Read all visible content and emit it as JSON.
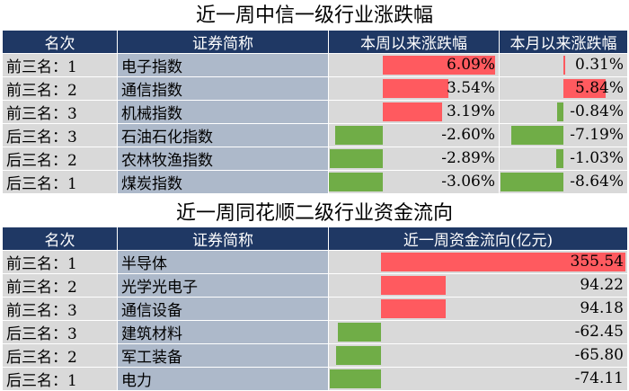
{
  "table1": {
    "title": "近一周中信一级行业涨跌幅",
    "headers": [
      "名次",
      "证券简称",
      "本周以来涨跌幅",
      "本月以来涨跌幅"
    ],
    "rows": [
      {
        "rank": "前三名：1",
        "name": "电子指数",
        "week": "6.09%",
        "week_value": 6.09,
        "month": "0.31%",
        "month_value": 0.31
      },
      {
        "rank": "前三名：2",
        "name": "通信指数",
        "week": "3.54%",
        "week_value": 3.54,
        "month": "5.84%",
        "month_value": 5.84
      },
      {
        "rank": "前三名：3",
        "name": "机械指数",
        "week": "3.19%",
        "week_value": 3.19,
        "month": "-0.84%",
        "month_value": -0.84
      },
      {
        "rank": "后三名：3",
        "name": "石油石化指数",
        "week": "-2.60%",
        "week_value": -2.6,
        "month": "-7.19%",
        "month_value": -7.19
      },
      {
        "rank": "后三名：2",
        "name": "农林牧渔指数",
        "week": "-2.89%",
        "week_value": -2.89,
        "month": "-1.03%",
        "month_value": -1.03
      },
      {
        "rank": "后三名：1",
        "name": "煤炭指数",
        "week": "-3.06%",
        "week_value": -3.06,
        "month": "-8.64%",
        "month_value": -8.64
      }
    ]
  },
  "table2": {
    "title": "近一周同花顺二级行业资金流向",
    "headers": [
      "名次",
      "证券简称",
      "近一周资金流向(亿元)"
    ],
    "rows": [
      {
        "rank": "前三名：1",
        "name": "半导体",
        "flow": "355.54",
        "flow_value": 355.54
      },
      {
        "rank": "前三名：2",
        "name": "光学光电子",
        "flow": "94.22",
        "flow_value": 94.22
      },
      {
        "rank": "前三名：3",
        "name": "通信设备",
        "flow": "94.18",
        "flow_value": 94.18
      },
      {
        "rank": "后三名：3",
        "name": "建筑材料",
        "flow": "-62.45",
        "flow_value": -62.45
      },
      {
        "rank": "后三名：2",
        "name": "军工装备",
        "flow": "-65.80",
        "flow_value": -65.8
      },
      {
        "rank": "后三名：1",
        "name": "电力",
        "flow": "-74.11",
        "flow_value": -74.11
      }
    ]
  },
  "colors": {
    "header_bg": "#1f3864",
    "positive": "#ff5a5f",
    "negative": "#70ad47",
    "rank_bg": "#d9d9d9",
    "name_bg": "#adb9ca"
  }
}
